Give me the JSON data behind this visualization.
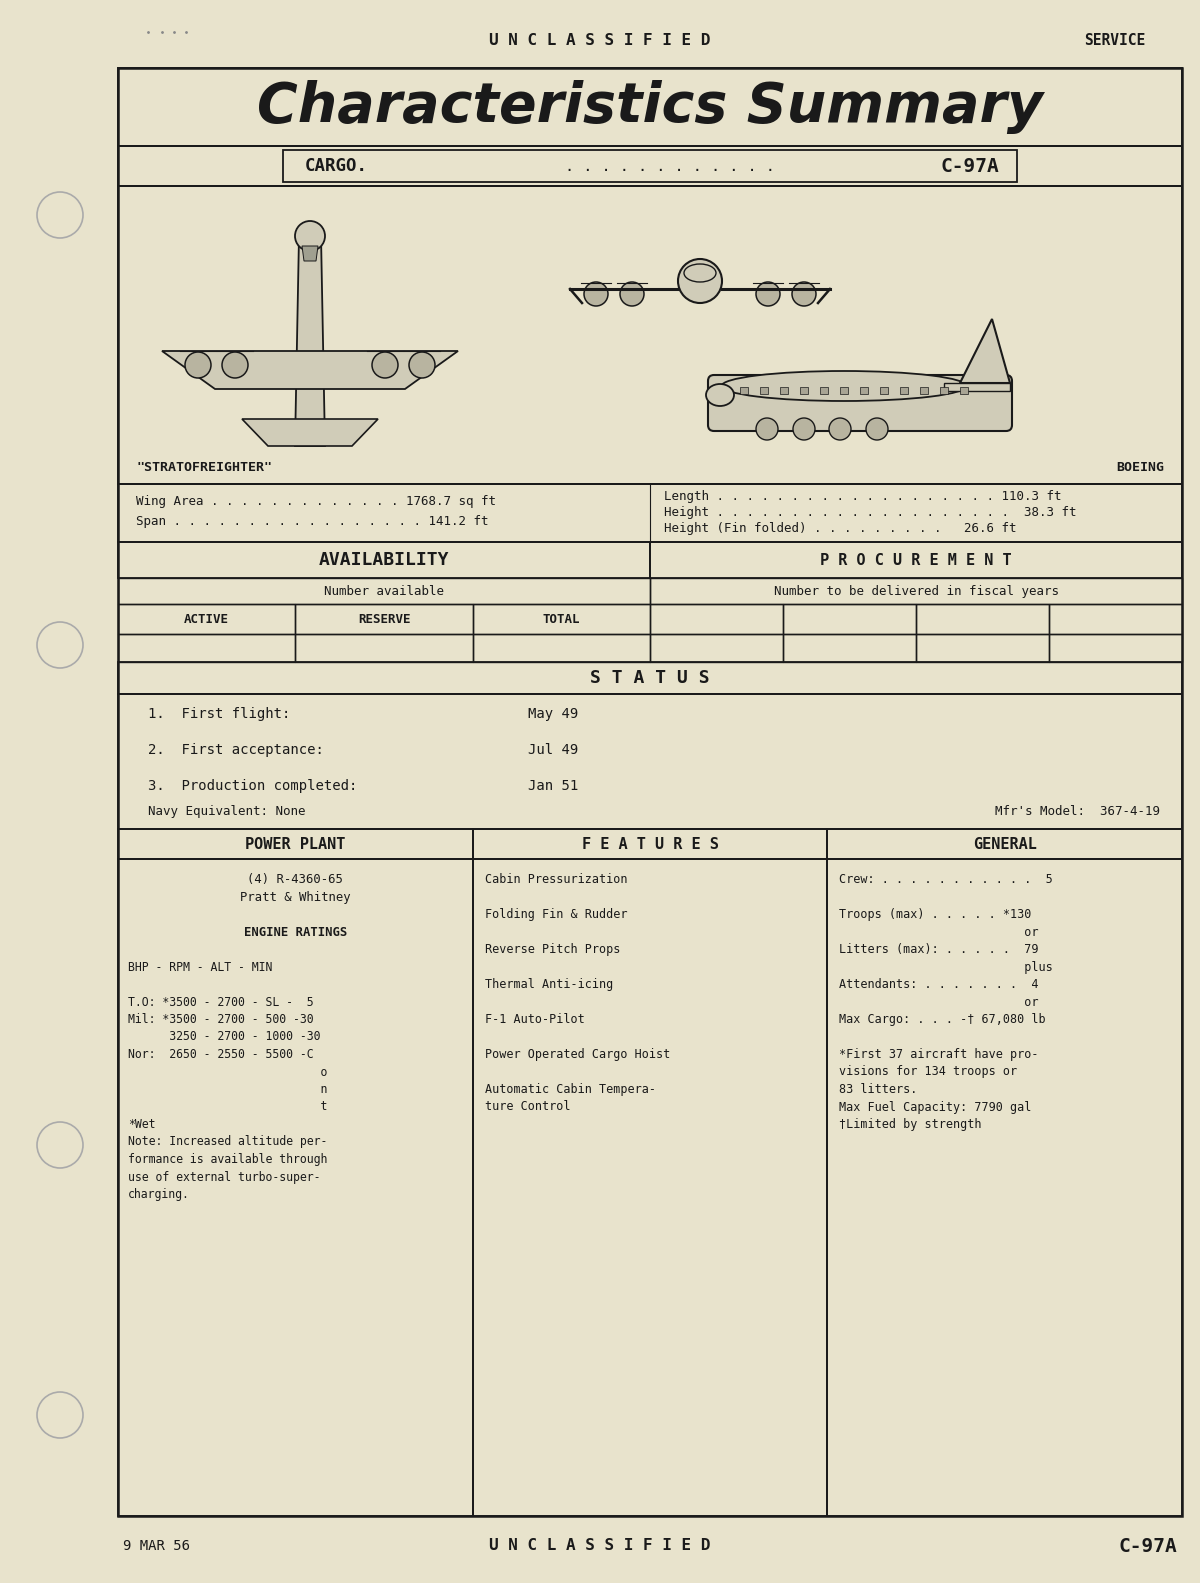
{
  "bg_color": "#e8e3cc",
  "line_color": "#1a1a1a",
  "text_color": "#1a1a1a",
  "top_label": "U N C L A S S I F I E D",
  "top_right": "SERVICE",
  "title": "Characteristics Summary",
  "cargo_label": "CARGO.",
  "cargo_dots": ". . . . . . . . . . . .",
  "cargo_model": "C-97A",
  "stratofreighter": "\"STRATOFREIGHTER\"",
  "boeing_label": "BOEING",
  "wing_area_line": "Wing Area . . . . . . . . . . . . . 1768.7 sq ft",
  "span_line": "Span . . . . . . . . . . . . . . . . . 141.2 ft",
  "length_line": "Length . . . . . . . . . . . . . . . . . . . 110.3 ft",
  "height_line": "Height . . . . . . . . . . . . . . . . . . . .  38.3 ft",
  "height_fin_line": "Height (Fin folded) . . . . . . . . .   26.6 ft",
  "avail_header": "AVAILABILITY",
  "proc_header": "P R O C U R E M E N T",
  "avail_sub": "Number available",
  "proc_sub": "Number to be delivered in fiscal years",
  "active": "ACTIVE",
  "reserve": "RESERVE",
  "total": "TOTAL",
  "status_header": "S T A T U S",
  "status_1_label": "1.  First flight:",
  "status_1_val": "May 49",
  "status_2_label": "2.  First acceptance:",
  "status_2_val": "Jul 49",
  "status_3_label": "3.  Production completed:",
  "status_3_val": "Jan 51",
  "navy_line": "Navy Equivalent: None",
  "mfr_line": "Mfr's Model:  367-4-19",
  "power_header": "POWER PLANT",
  "features_header": "F E A T U R E S",
  "general_header": "GENERAL",
  "power_content": [
    {
      "text": "(4) R-4360-65",
      "center": true,
      "bold": false
    },
    {
      "text": "Pratt & Whitney",
      "center": true,
      "bold": false
    },
    {
      "text": "",
      "center": false,
      "bold": false
    },
    {
      "text": "ENGINE RATINGS",
      "center": true,
      "bold": true
    },
    {
      "text": "",
      "center": false,
      "bold": false
    },
    {
      "text": "BHP - RPM - ALT - MIN",
      "center": false,
      "bold": false
    },
    {
      "text": "",
      "center": false,
      "bold": false
    },
    {
      "text": "T.O: *3500 - 2700 - SL -  5",
      "center": false,
      "bold": false
    },
    {
      "text": "Mil: *3500 - 2700 - 500 -30",
      "center": false,
      "bold": false
    },
    {
      "text": "      3250 - 2700 - 1000 -30",
      "center": false,
      "bold": false
    },
    {
      "text": "Nor:  2650 - 2550 - 5500 -C",
      "center": false,
      "bold": false
    },
    {
      "text": "                            o",
      "center": false,
      "bold": false
    },
    {
      "text": "                            n",
      "center": false,
      "bold": false
    },
    {
      "text": "                            t",
      "center": false,
      "bold": false
    },
    {
      "text": "*Wet",
      "center": false,
      "bold": false
    },
    {
      "text": "Note: Increased altitude per-",
      "center": false,
      "bold": false
    },
    {
      "text": "formance is available through",
      "center": false,
      "bold": false
    },
    {
      "text": "use of external turbo-super-",
      "center": false,
      "bold": false
    },
    {
      "text": "charging.",
      "center": false,
      "bold": false
    }
  ],
  "features_content": [
    "Cabin Pressurization",
    "",
    "Folding Fin & Rudder",
    "",
    "Reverse Pitch Props",
    "",
    "Thermal Anti-icing",
    "",
    "F-1 Auto-Pilot",
    "",
    "Power Operated Cargo Hoist",
    "",
    "Automatic Cabin Tempera-",
    "ture Control"
  ],
  "general_content": [
    "Crew: . . . . . . . . . . .  5",
    "",
    "Troops (max) . . . . . *130",
    "                          or",
    "Litters (max): . . . . .  79",
    "                          plus",
    "Attendants: . . . . . . .  4",
    "                          or",
    "Max Cargo: . . . -† 67,080 lb",
    "",
    "*First 37 aircraft have pro-",
    "visions for 134 troops or",
    "83 litters.",
    "Max Fuel Capacity: 7790 gal",
    "†Limited by strength"
  ],
  "bottom_date": "9 MAR 56",
  "bottom_unclass": "U N C L A S S I F I E D",
  "bottom_model": "C-97A"
}
